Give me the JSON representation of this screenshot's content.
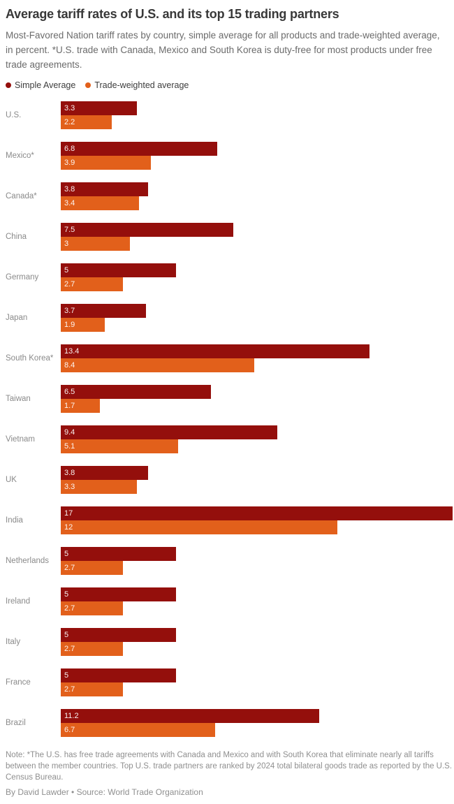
{
  "header": {
    "title": "Average tariff rates of U.S. and its top 15 trading partners",
    "subtitle": "Most-Favored Nation tariff rates by country, simple average for all products and trade-weighted average, in percent. *U.S. trade with Canada, Mexico and South Korea is duty-free for most products under free trade agreements."
  },
  "legend": [
    {
      "label": "Simple Average",
      "color": "#940F0C"
    },
    {
      "label": "Trade-weighted average",
      "color": "#E2601B"
    }
  ],
  "colors": {
    "simple_average": "#940F0C",
    "trade_weighted": "#E2601B"
  },
  "chart_data": {
    "type": "bar",
    "orientation": "horizontal",
    "title": "Average tariff rates of U.S. and its top 15 trading partners",
    "xlabel": "",
    "ylabel": "",
    "xlim": [
      0,
      17
    ],
    "grid": false,
    "legend_position": "top-left",
    "value_labels": "inside-start",
    "categories": [
      "U.S.",
      "Mexico*",
      "Canada*",
      "China",
      "Germany",
      "Japan",
      "South Korea*",
      "Taiwan",
      "Vietnam",
      "UK",
      "India",
      "Netherlands",
      "Ireland",
      "Italy",
      "France",
      "Brazil"
    ],
    "series": [
      {
        "name": "Simple Average",
        "color": "#940F0C",
        "values": [
          3.3,
          6.8,
          3.8,
          7.5,
          5,
          3.7,
          13.4,
          6.5,
          9.4,
          3.8,
          17,
          5,
          5,
          5,
          5,
          11.2
        ]
      },
      {
        "name": "Trade-weighted average",
        "color": "#E2601B",
        "values": [
          2.2,
          3.9,
          3.4,
          3,
          2.7,
          1.9,
          8.4,
          1.7,
          5.1,
          3.3,
          12,
          2.7,
          2.7,
          2.7,
          2.7,
          6.7
        ]
      }
    ]
  },
  "footer": {
    "note": "Note: *The U.S. has free trade agreements with Canada and Mexico and with South Korea that eliminate nearly all tariffs between the member countries. Top U.S. trade partners are ranked by 2024 total bilateral goods trade as reported by the U.S. Census Bureau.",
    "byline": "By David Lawder • Source: World Trade Organization"
  }
}
